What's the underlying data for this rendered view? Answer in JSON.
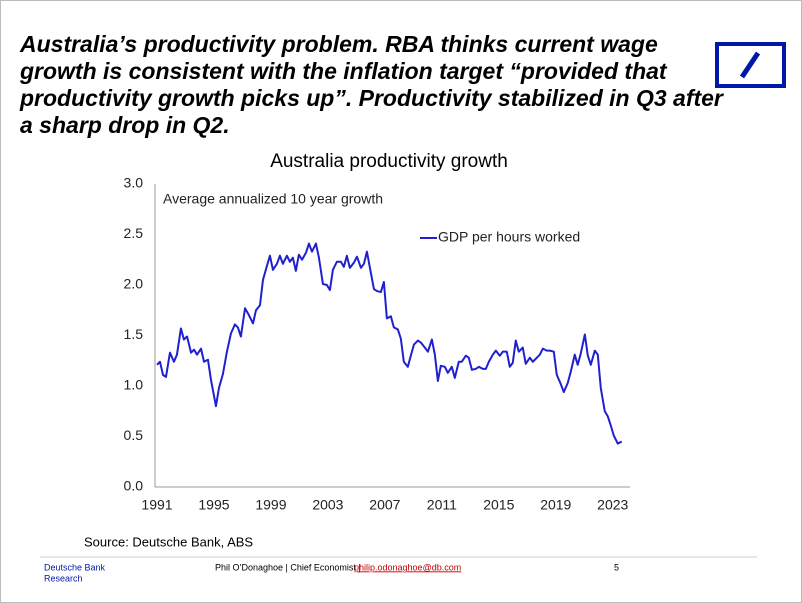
{
  "headline": [
    "Australia’s productivity problem. RBA thinks current wage",
    "growth is consistent with the inflation target “provided that",
    "productivity growth picks up”. Productivity stabilized in Q3 after",
    "a sharp drop in Q2."
  ],
  "chart_data": {
    "type": "line",
    "title": "Australia productivity growth",
    "annotation": "Average annualized 10 year growth",
    "x": [
      1991.0,
      1991.21,
      1991.42,
      1991.63,
      1991.91,
      1992.19,
      1992.4,
      1992.68,
      1992.89,
      1993.11,
      1993.39,
      1993.6,
      1993.81,
      1994.09,
      1994.3,
      1994.58,
      1994.79,
      1995.14,
      1995.35,
      1995.63,
      1995.91,
      1996.19,
      1996.47,
      1996.68,
      1996.89,
      1997.18,
      1997.46,
      1997.74,
      1997.95,
      1998.23,
      1998.44,
      1998.72,
      1998.93,
      1999.14,
      1999.42,
      1999.63,
      1999.84,
      2000.12,
      2000.33,
      2000.54,
      2000.75,
      2000.96,
      2001.18,
      2001.46,
      2001.67,
      2001.88,
      2002.16,
      2002.37,
      2002.65,
      2002.93,
      2003.14,
      2003.35,
      2003.63,
      2003.91,
      2004.12,
      2004.33,
      2004.54,
      2004.82,
      2005.04,
      2005.32,
      2005.53,
      2005.74,
      2005.95,
      2006.23,
      2006.44,
      2006.72,
      2006.93,
      2007.14,
      2007.42,
      2007.63,
      2007.91,
      2008.12,
      2008.33,
      2008.61,
      2008.82,
      2009.04,
      2009.32,
      2009.53,
      2009.81,
      2010.02,
      2010.3,
      2010.51,
      2010.72,
      2010.93,
      2011.21,
      2011.42,
      2011.7,
      2011.91,
      2012.19,
      2012.4,
      2012.68,
      2012.89,
      2013.11,
      2013.39,
      2013.6,
      2013.88,
      2014.09,
      2014.3,
      2014.58,
      2014.79,
      2015.07,
      2015.28,
      2015.56,
      2015.77,
      2015.98,
      2016.19,
      2016.4,
      2016.68,
      2016.89,
      2017.18,
      2017.39,
      2017.67,
      2017.88,
      2018.09,
      2018.37,
      2018.58,
      2018.86,
      2019.07,
      2019.35,
      2019.56,
      2019.84,
      2020.05,
      2020.33,
      2020.54,
      2020.75,
      2021.04,
      2021.25,
      2021.46,
      2021.74,
      2021.95,
      2022.16,
      2022.44,
      2022.65,
      2022.86,
      2023.07,
      2023.35,
      2023.63
    ],
    "series": [
      {
        "name": "GDP per hours worked",
        "color": "#2020d0",
        "values": [
          1.21,
          1.24,
          1.11,
          1.09,
          1.33,
          1.24,
          1.31,
          1.57,
          1.46,
          1.49,
          1.33,
          1.36,
          1.31,
          1.37,
          1.24,
          1.26,
          1.06,
          0.8,
          0.98,
          1.12,
          1.34,
          1.52,
          1.61,
          1.58,
          1.49,
          1.77,
          1.7,
          1.62,
          1.75,
          1.8,
          2.05,
          2.19,
          2.29,
          2.15,
          2.21,
          2.29,
          2.21,
          2.29,
          2.23,
          2.27,
          2.14,
          2.3,
          2.25,
          2.32,
          2.41,
          2.33,
          2.41,
          2.27,
          2.01,
          2.0,
          1.95,
          2.15,
          2.23,
          2.23,
          2.18,
          2.29,
          2.17,
          2.22,
          2.28,
          2.17,
          2.21,
          2.33,
          2.17,
          1.96,
          1.94,
          1.93,
          2.03,
          1.67,
          1.69,
          1.58,
          1.56,
          1.47,
          1.24,
          1.19,
          1.3,
          1.41,
          1.45,
          1.43,
          1.38,
          1.34,
          1.46,
          1.31,
          1.05,
          1.2,
          1.19,
          1.13,
          1.19,
          1.08,
          1.24,
          1.24,
          1.3,
          1.28,
          1.16,
          1.17,
          1.19,
          1.17,
          1.17,
          1.24,
          1.31,
          1.35,
          1.3,
          1.34,
          1.34,
          1.19,
          1.23,
          1.45,
          1.34,
          1.38,
          1.22,
          1.28,
          1.24,
          1.28,
          1.31,
          1.37,
          1.35,
          1.35,
          1.34,
          1.11,
          1.02,
          0.94,
          1.03,
          1.14,
          1.31,
          1.21,
          1.32,
          1.51,
          1.3,
          1.21,
          1.35,
          1.31,
          0.98,
          0.75,
          0.7,
          0.61,
          0.51,
          0.43,
          0.45
        ]
      }
    ],
    "xlim": [
      1991,
      2024
    ],
    "xticks": [
      1991,
      1995,
      1999,
      2003,
      2007,
      2011,
      2015,
      2019,
      2023
    ],
    "ylim": [
      0,
      3
    ],
    "yticks": [
      {
        "value": 0,
        "label": "0.0"
      },
      {
        "value": 0.5,
        "label": "0.5"
      },
      {
        "value": 1,
        "label": "1.0"
      },
      {
        "value": 1.5,
        "label": "1.5"
      },
      {
        "value": 2,
        "label": "2.0"
      },
      {
        "value": 2.5,
        "label": "2.5"
      },
      {
        "value": 3,
        "label": "3.0"
      }
    ],
    "grid": false
  },
  "source": "Source: Deutsche Bank, ABS",
  "footer": {
    "org": "Deutsche Bank",
    "division": "Research",
    "author": "Phil O’Donaghoe | Chief Economist  |",
    "email": "philip.odonaghoe@db.com",
    "page": "5"
  }
}
